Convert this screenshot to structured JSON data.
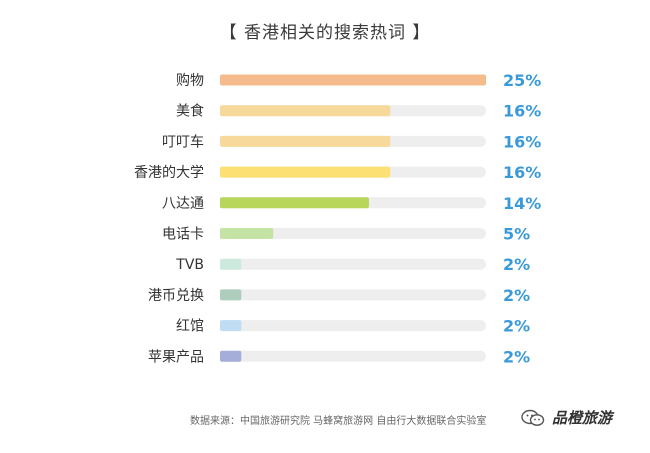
{
  "chart_data": {
    "type": "bar",
    "orientation": "horizontal",
    "title": "【 香港相关的搜索热词 】",
    "categories": [
      "购物",
      "美食",
      "叮叮车",
      "香港的大学",
      "八达通",
      "电话卡",
      "TVB",
      "港币兑换",
      "红馆",
      "苹果产品"
    ],
    "values": [
      25,
      16,
      16,
      16,
      14,
      5,
      2,
      2,
      2,
      2
    ],
    "value_labels": [
      "25%",
      "16%",
      "16%",
      "16%",
      "14%",
      "5%",
      "2%",
      "2%",
      "2%",
      "2%"
    ],
    "colors": [
      "#f5bb8c",
      "#f7d99b",
      "#f7d99b",
      "#fde073",
      "#b7d65a",
      "#c6e3a6",
      "#cde8dc",
      "#aecdbd",
      "#bfdcf2",
      "#a4aed8"
    ],
    "track_color": "#eeeeee",
    "label_color": "#3a9ad9",
    "xlim": [
      0,
      25
    ],
    "grid": false,
    "legend": "none"
  },
  "source": "数据来源：中国旅游研究院 马蜂窝旅游网 自由行大数据联合实验室",
  "brand": {
    "name": "品橙旅游",
    "icon": "wechat-icon"
  }
}
